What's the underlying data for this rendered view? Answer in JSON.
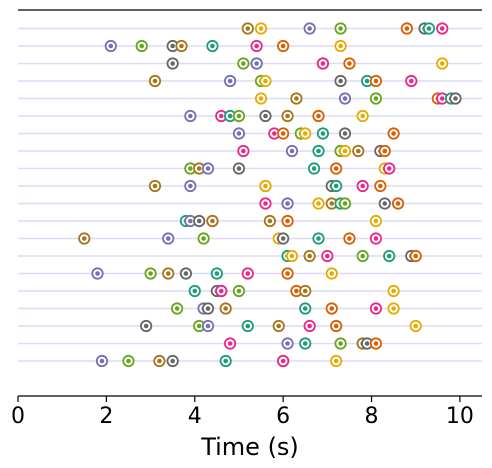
{
  "chart_data": {
    "type": "scatter",
    "xlabel": "Time (s)",
    "xlim": [
      0,
      10.5
    ],
    "xticks": [
      0,
      2,
      4,
      6,
      8,
      10
    ],
    "grid": "horizontal rows only",
    "colors": {
      "teal": "#1b9e77",
      "orange": "#d95f02",
      "purple": "#7570b3",
      "pink": "#e7298a",
      "green": "#66a61e",
      "gold": "#e6ab02",
      "brown": "#a6761d",
      "gray": "#666666",
      "row_line": "#dcdcf5"
    },
    "rows": [
      [
        [
          5.2,
          "brown"
        ],
        [
          5.5,
          "gold"
        ],
        [
          6.6,
          "purple"
        ],
        [
          7.3,
          "green"
        ],
        [
          8.8,
          "orange"
        ],
        [
          9.2,
          "gray"
        ],
        [
          9.3,
          "teal"
        ],
        [
          9.6,
          "pink"
        ]
      ],
      [
        [
          2.1,
          "purple"
        ],
        [
          2.8,
          "green"
        ],
        [
          3.5,
          "gray"
        ],
        [
          3.7,
          "brown"
        ],
        [
          4.4,
          "teal"
        ],
        [
          5.4,
          "pink"
        ],
        [
          6.0,
          "orange"
        ],
        [
          7.3,
          "gold"
        ]
      ],
      [
        [
          5.1,
          "green"
        ],
        [
          5.4,
          "teal"
        ],
        [
          5.4,
          "purple"
        ],
        [
          6.9,
          "green"
        ],
        [
          6.9,
          "pink"
        ],
        [
          7.5,
          "orange"
        ],
        [
          9.6,
          "gold"
        ],
        [
          3.5,
          "gray"
        ]
      ],
      [
        [
          3.1,
          "brown"
        ],
        [
          4.8,
          "purple"
        ],
        [
          5.5,
          "green"
        ],
        [
          5.6,
          "gold"
        ],
        [
          7.3,
          "gray"
        ],
        [
          7.9,
          "teal"
        ],
        [
          8.1,
          "orange"
        ],
        [
          8.9,
          "pink"
        ]
      ],
      [
        [
          5.5,
          "gold"
        ],
        [
          6.3,
          "brown"
        ],
        [
          7.4,
          "purple"
        ],
        [
          8.1,
          "green"
        ],
        [
          9.5,
          "orange"
        ],
        [
          9.6,
          "pink"
        ],
        [
          9.8,
          "teal"
        ],
        [
          9.9,
          "gray"
        ]
      ],
      [
        [
          3.9,
          "purple"
        ],
        [
          4.6,
          "pink"
        ],
        [
          4.8,
          "teal"
        ],
        [
          5.0,
          "green"
        ],
        [
          5.6,
          "gray"
        ],
        [
          6.1,
          "brown"
        ],
        [
          6.8,
          "orange"
        ],
        [
          7.8,
          "gold"
        ]
      ],
      [
        [
          5.0,
          "purple"
        ],
        [
          5.8,
          "pink"
        ],
        [
          6.0,
          "orange"
        ],
        [
          6.4,
          "green"
        ],
        [
          6.5,
          "gold"
        ],
        [
          6.9,
          "teal"
        ],
        [
          7.4,
          "gray"
        ],
        [
          8.5,
          "orange"
        ]
      ],
      [
        [
          5.1,
          "pink"
        ],
        [
          6.2,
          "purple"
        ],
        [
          6.8,
          "teal"
        ],
        [
          7.3,
          "green"
        ],
        [
          7.4,
          "gold"
        ],
        [
          7.7,
          "brown"
        ],
        [
          8.2,
          "gray"
        ],
        [
          8.3,
          "orange"
        ]
      ],
      [
        [
          3.9,
          "green"
        ],
        [
          4.1,
          "brown"
        ],
        [
          4.3,
          "purple"
        ],
        [
          5.0,
          "gray"
        ],
        [
          6.7,
          "teal"
        ],
        [
          7.2,
          "orange"
        ],
        [
          8.3,
          "gold"
        ],
        [
          8.4,
          "pink"
        ]
      ],
      [
        [
          3.1,
          "brown"
        ],
        [
          3.9,
          "purple"
        ],
        [
          5.6,
          "green"
        ],
        [
          5.6,
          "gold"
        ],
        [
          7.1,
          "gray"
        ],
        [
          7.2,
          "teal"
        ],
        [
          7.8,
          "pink"
        ],
        [
          8.2,
          "orange"
        ]
      ],
      [
        [
          5.6,
          "pink"
        ],
        [
          6.1,
          "purple"
        ],
        [
          6.8,
          "gold"
        ],
        [
          7.1,
          "brown"
        ],
        [
          7.3,
          "teal"
        ],
        [
          7.4,
          "green"
        ],
        [
          8.3,
          "gray"
        ],
        [
          8.6,
          "orange"
        ]
      ],
      [
        [
          3.8,
          "teal"
        ],
        [
          3.9,
          "purple"
        ],
        [
          4.1,
          "gray"
        ],
        [
          4.4,
          "pink"
        ],
        [
          4.4,
          "brown"
        ],
        [
          5.7,
          "brown"
        ],
        [
          6.1,
          "orange"
        ],
        [
          8.1,
          "gold"
        ]
      ],
      [
        [
          1.5,
          "brown"
        ],
        [
          3.4,
          "purple"
        ],
        [
          4.2,
          "green"
        ],
        [
          5.9,
          "gold"
        ],
        [
          6.0,
          "gray"
        ],
        [
          6.8,
          "teal"
        ],
        [
          7.5,
          "orange"
        ],
        [
          8.1,
          "pink"
        ]
      ],
      [
        [
          6.1,
          "teal"
        ],
        [
          6.2,
          "gold"
        ],
        [
          6.6,
          "brown"
        ],
        [
          7.0,
          "pink"
        ],
        [
          7.8,
          "green"
        ],
        [
          8.4,
          "teal"
        ],
        [
          8.9,
          "gray"
        ],
        [
          9.0,
          "orange"
        ]
      ],
      [
        [
          1.8,
          "purple"
        ],
        [
          3.0,
          "green"
        ],
        [
          3.4,
          "brown"
        ],
        [
          3.8,
          "gray"
        ],
        [
          4.5,
          "teal"
        ],
        [
          5.2,
          "pink"
        ],
        [
          6.1,
          "orange"
        ],
        [
          7.1,
          "gold"
        ]
      ],
      [
        [
          4.0,
          "teal"
        ],
        [
          4.5,
          "gray"
        ],
        [
          4.6,
          "purple"
        ],
        [
          4.6,
          "pink"
        ],
        [
          5.0,
          "green"
        ],
        [
          6.3,
          "orange"
        ],
        [
          6.5,
          "brown"
        ],
        [
          8.5,
          "gold"
        ]
      ],
      [
        [
          3.6,
          "green"
        ],
        [
          4.2,
          "purple"
        ],
        [
          4.3,
          "gray"
        ],
        [
          4.7,
          "brown"
        ],
        [
          6.5,
          "teal"
        ],
        [
          7.1,
          "orange"
        ],
        [
          8.1,
          "pink"
        ],
        [
          8.5,
          "gold"
        ]
      ],
      [
        [
          2.9,
          "gray"
        ],
        [
          4.1,
          "green"
        ],
        [
          4.3,
          "purple"
        ],
        [
          5.2,
          "teal"
        ],
        [
          5.9,
          "brown"
        ],
        [
          6.6,
          "pink"
        ],
        [
          7.2,
          "orange"
        ],
        [
          9.0,
          "gold"
        ]
      ],
      [
        [
          4.8,
          "pink"
        ],
        [
          6.1,
          "purple"
        ],
        [
          6.5,
          "teal"
        ],
        [
          7.3,
          "green"
        ],
        [
          7.8,
          "gold"
        ],
        [
          7.8,
          "brown"
        ],
        [
          7.9,
          "gray"
        ],
        [
          8.1,
          "orange"
        ]
      ],
      [
        [
          1.9,
          "purple"
        ],
        [
          2.5,
          "green"
        ],
        [
          3.2,
          "brown"
        ],
        [
          3.5,
          "gray"
        ],
        [
          4.7,
          "teal"
        ],
        [
          6.0,
          "orange"
        ],
        [
          6.0,
          "pink"
        ],
        [
          7.2,
          "gold"
        ]
      ]
    ]
  }
}
